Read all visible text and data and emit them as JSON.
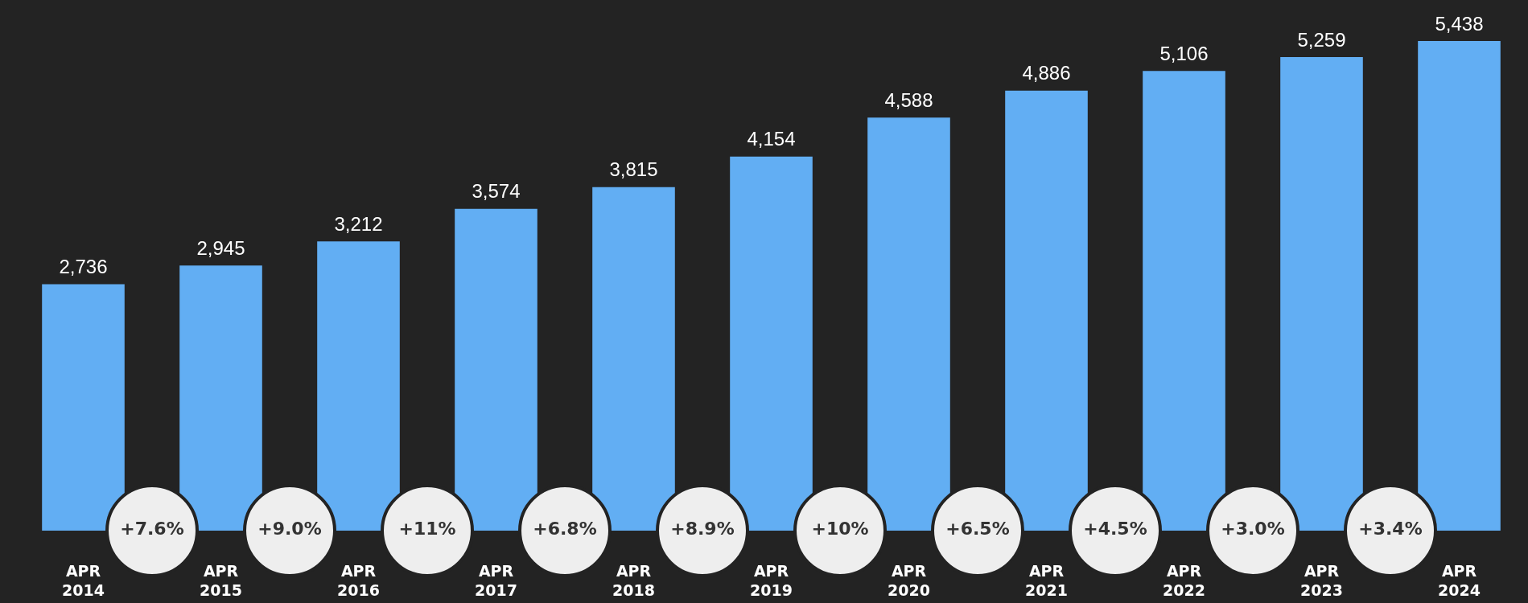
{
  "chart_data": {
    "type": "bar",
    "categories": [
      "APR\n2014",
      "APR\n2015",
      "APR\n2016",
      "APR\n2017",
      "APR\n2018",
      "APR\n2019",
      "APR\n2020",
      "APR\n2021",
      "APR\n2022",
      "APR\n2023",
      "APR\n2024"
    ],
    "values": [
      2736,
      2945,
      3212,
      3574,
      3815,
      4154,
      4588,
      4886,
      5106,
      5259,
      5438
    ],
    "color": "#62aef3",
    "value_labels": [
      "2,736",
      "2,945",
      "3,212",
      "3,574",
      "3,815",
      "4,154",
      "4,588",
      "4,886",
      "5,106",
      "5,259",
      "5,438"
    ],
    "annotations": [
      "+7.6%",
      "+9.0%",
      "+11%",
      "+6.8%",
      "+8.9%",
      "+10%",
      "+6.5%",
      "+4.5%",
      "+3.0%",
      "+3.4%"
    ],
    "grid": false
  }
}
